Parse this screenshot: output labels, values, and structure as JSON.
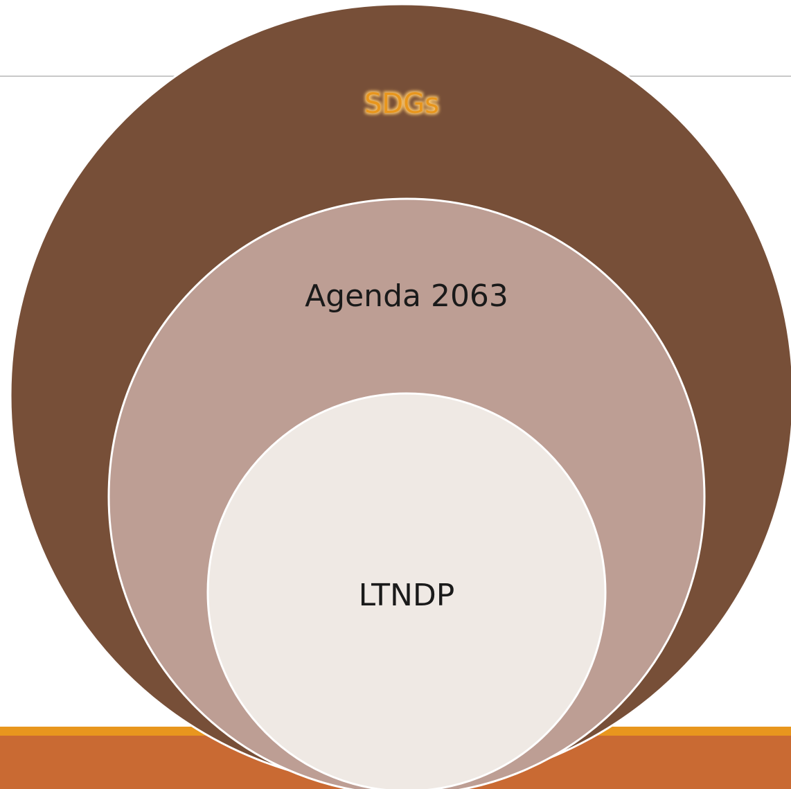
{
  "nodes": [
    {
      "label": "SDGs"
    },
    {
      "label": "Agenda 2063"
    },
    {
      "label": "LTNDP"
    }
  ]
}
